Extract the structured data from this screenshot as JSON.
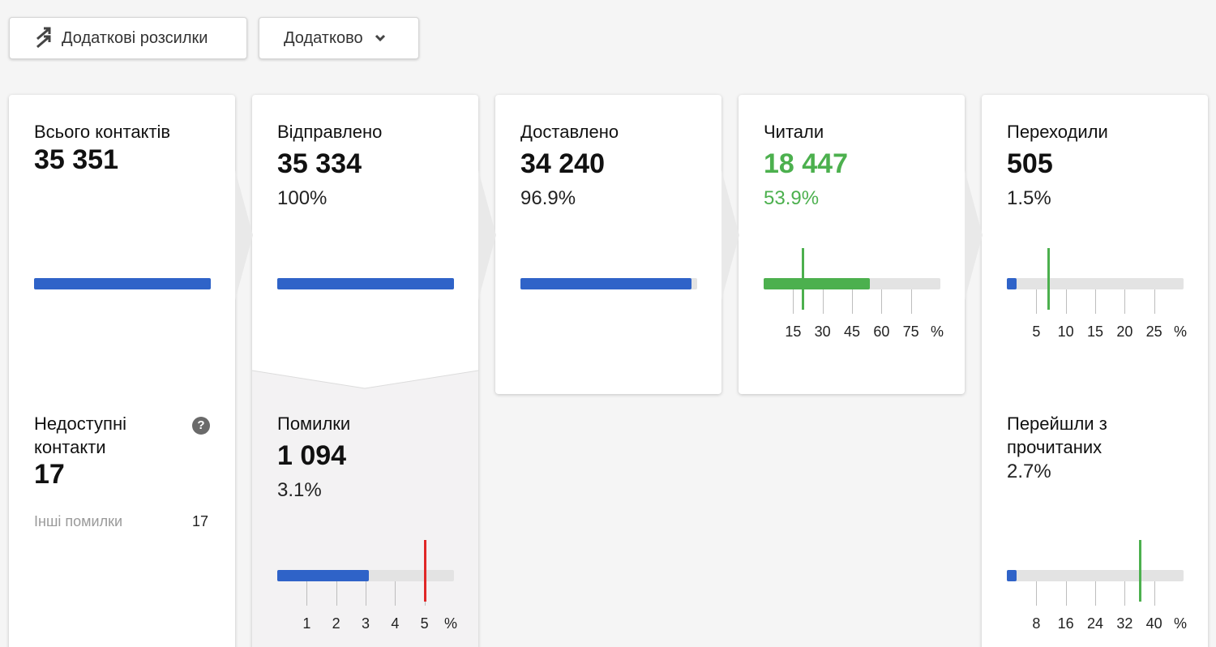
{
  "toolbar": {
    "extra_mailings_label": "Додаткові розсилки",
    "extra_label": "Додатково"
  },
  "colors": {
    "blue": "#2f63c8",
    "green": "#4cb04e",
    "red": "#e02727",
    "track": "#e3e3e3"
  },
  "total": {
    "label": "Всього контактів",
    "value": "35 351",
    "progress": 1.0
  },
  "unavailable": {
    "label": "Недоступні контакти",
    "value": "17",
    "other_label": "Інші помилки",
    "other_value": "17"
  },
  "sent": {
    "label": "Відправлено",
    "value": "35 334",
    "percent": "100%",
    "progress": 1.0
  },
  "errors": {
    "label": "Помилки",
    "value": "1 094",
    "percent": "3.1%",
    "ticks": [
      "1",
      "2",
      "3",
      "4",
      "5",
      "%"
    ],
    "progress_percent": 3.1,
    "benchmark_percent": 5.0
  },
  "delivered": {
    "label": "Доставлено",
    "value": "34 240",
    "percent": "96.9%",
    "progress": 0.969
  },
  "read": {
    "label": "Читали",
    "value": "18 447",
    "percent": "53.9%",
    "ticks": [
      "15",
      "30",
      "45",
      "60",
      "75",
      "%"
    ],
    "progress_percent": 53.9,
    "benchmark_percent": 20
  },
  "clicked": {
    "label": "Переходили",
    "value": "505",
    "percent": "1.5%",
    "ticks": [
      "5",
      "10",
      "15",
      "20",
      "25",
      "%"
    ],
    "progress_percent": 1.5,
    "benchmark_percent": 7
  },
  "clicked_of_read": {
    "label": "Перейшли з прочитаних",
    "percent": "2.7%",
    "ticks": [
      "8",
      "16",
      "24",
      "32",
      "40",
      "%"
    ],
    "progress_percent": 2.7,
    "benchmark_percent": 36
  }
}
